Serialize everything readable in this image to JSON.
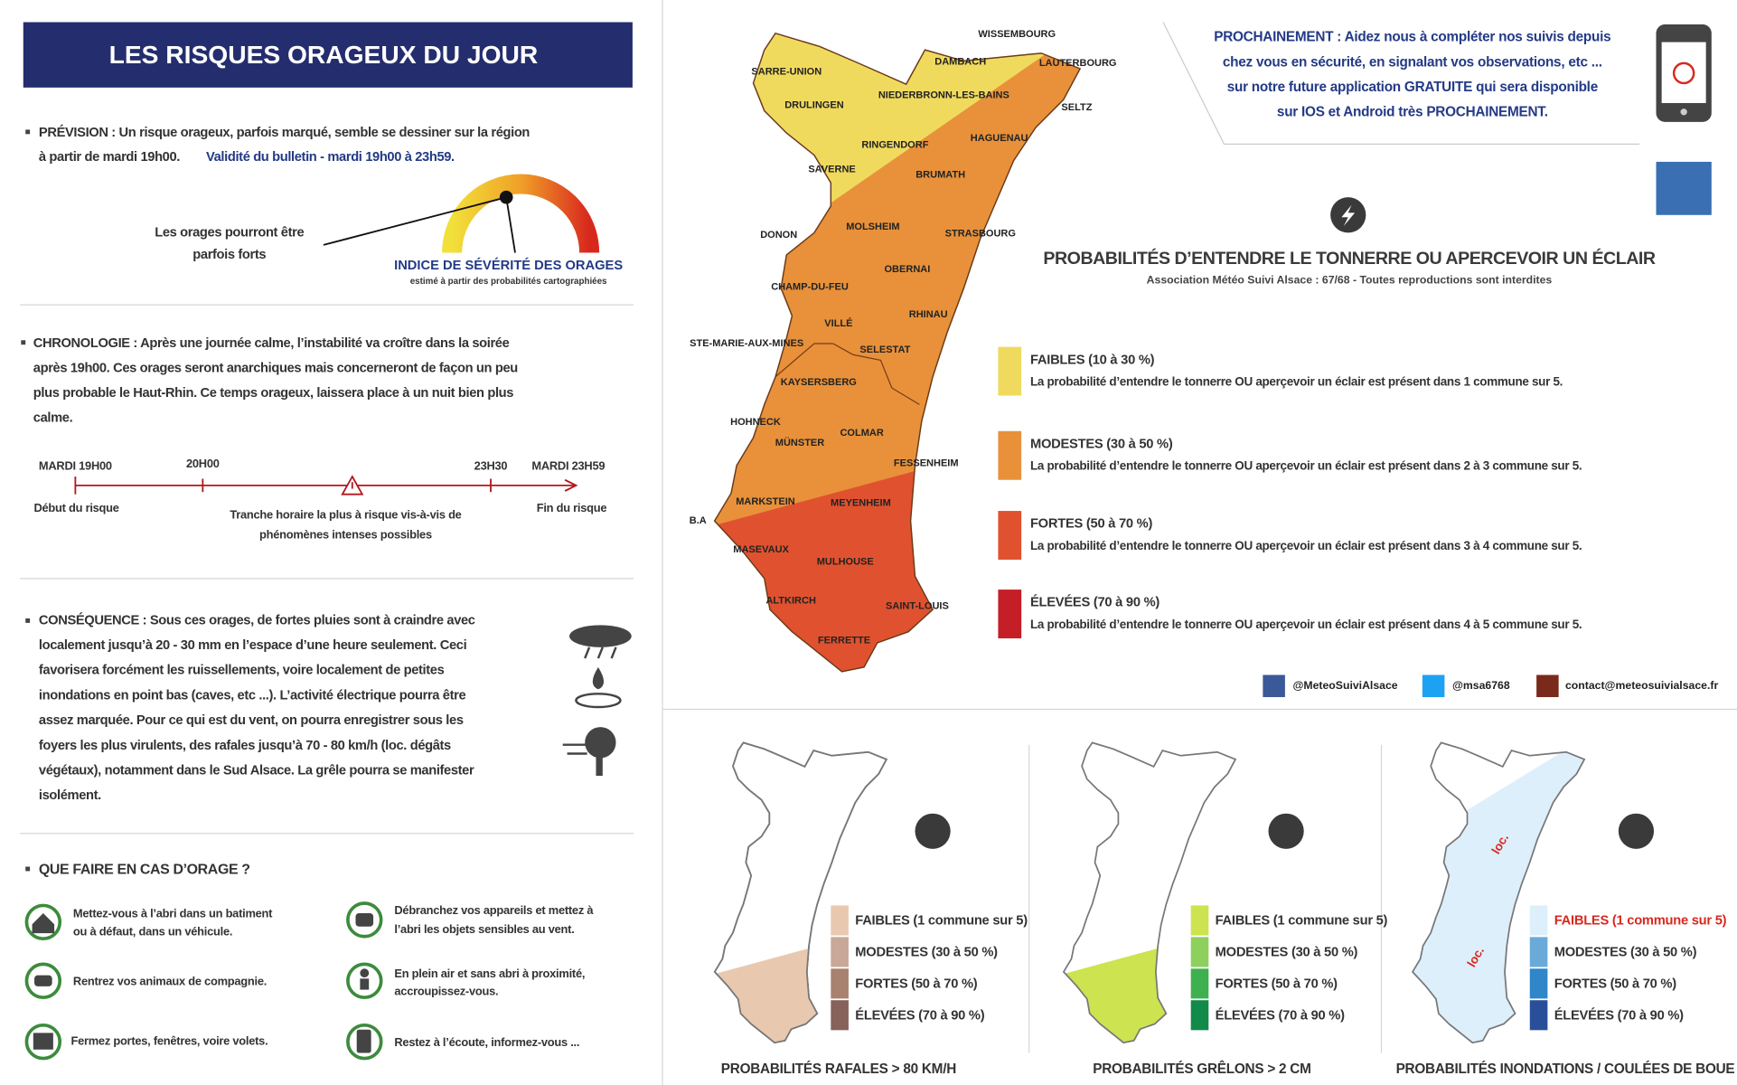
{
  "left_panel": {
    "title": "LES RISQUES ORAGEUX DU JOUR",
    "prevision": {
      "lines": [
        "PRÉVISION : Un risque orageux, parfois marqué, semble se dessiner sur la région",
        "à partir de mardi 19h00."
      ],
      "validity": "Validité du bulletin - mardi 19h00 à 23h59."
    },
    "gauge": {
      "caption": [
        "Les orages pourront être",
        "parfois forts"
      ],
      "label": "INDICE DE SÉVÉRITÉ DES ORAGES",
      "sublabel": "estimé à partir des probabilités cartographiées"
    },
    "chronologie": {
      "lines": [
        "CHRONOLOGIE : Après une journée calme, l’instabilité va croître dans la soirée",
        "après 19h00. Ces orages seront anarchiques mais concerneront de façon un peu",
        "plus probable le Haut-Rhin. Ce temps orageux, laissera place à un nuit bien plus",
        "calme."
      ]
    },
    "timeline": {
      "start": "MARDI 19H00",
      "first": "20H00",
      "last": "23H30",
      "end": "MARDI 23H59",
      "start_note": "Début du risque",
      "peak_note": [
        "Tranche horaire la plus à risque vis-à-vis de",
        "phénomènes intenses possibles"
      ],
      "end_note": "Fin du risque"
    },
    "consequence": {
      "lines": [
        "CONSÉQUENCE : Sous ces orages, de fortes pluies sont à craindre avec",
        "localement jusqu’à 20 - 30 mm en l’espace d’une heure seulement. Ceci",
        "favorisera forcément les ruissellements, voire localement de petites",
        "inondations en point bas (caves, etc ...). L’activité électrique pourra être",
        "assez marquée. Pour ce qui est du vent, on pourra enregistrer sous les",
        "foyers les plus virulents, des rafales jusqu’à 70 - 80 km/h (loc. dégâts",
        "végétaux), notamment dans le Sud Alsace. La grêle pourra se manifester",
        "isolément."
      ]
    },
    "what_to_do": {
      "title": "QUE FAIRE EN CAS D’ORAGE ?",
      "items": [
        [
          "Mettez-vous à l’abri dans un batiment",
          "ou à défaut, dans un véhicule."
        ],
        [
          "Débranchez vos appareils et mettez à",
          "l’abri les objets sensibles au vent."
        ],
        [
          "Rentrez vos animaux de compagnie."
        ],
        [
          "En plein air et sans abri à proximité,",
          "accroupissez-vous."
        ],
        [
          "Fermez portes, fenêtres, voire volets."
        ],
        [
          "Restez à l’écoute, informez-vous ..."
        ]
      ]
    }
  },
  "announcement": [
    "PROCHAINEMENT : Aidez nous à compléter nos suivis depuis",
    "chez vous en sécurité, en signalant vos observations, etc ...",
    "sur notre future application GRATUITE qui sera disponible",
    "sur IOS et Android très PROCHAINEMENT."
  ],
  "main_map": {
    "title": "PROBABILITÉS D’ENTENDRE LE TONNERRE OU APERCEVOIR UN ÉCLAIR",
    "subtitle": "Association Météo Suivi Alsace : 67/68 - Toutes reproductions sont interdites",
    "cities": [
      "WISSEMBOURG",
      "DAMBACH",
      "LAUTERBOURG",
      "SARRE-UNION",
      "NIEDERBRONN-LES-BAINS",
      "SELTZ",
      "DRULINGEN",
      "HAGUENAU",
      "RINGENDORF",
      "SAVERNE",
      "BRUMATH",
      "DONON",
      "MOLSHEIM",
      "STRASBOURG",
      "OBERNAI",
      "CHAMP-DU-FEU",
      "RHINAU",
      "VILLÉ",
      "STE-MARIE-AUX-MINES",
      "SELESTAT",
      "KAYSERSBERG",
      "HOHNECK",
      "COLMAR",
      "MÜNSTER",
      "FESSENHEIM",
      "MARKSTEIN",
      "MEYENHEIM",
      "B.A",
      "MASEVAUX",
      "MULHOUSE",
      "ALTKIRCH",
      "SAINT-LOUIS",
      "FERRETTE"
    ],
    "legend": [
      {
        "label": "FAIBLES (10 à 30 %)",
        "description": "La probabilité d’entendre le tonnerre OU aperçevoir un éclair est présent dans 1 commune sur 5.",
        "color": "#f0da5e"
      },
      {
        "label": "MODESTES (30 à 50 %)",
        "description": "La probabilité d’entendre le tonnerre OU aperçevoir un éclair est présent dans 2 à 3 commune sur 5.",
        "color": "#e8913a"
      },
      {
        "label": "FORTES (50 à 70 %)",
        "description": "La probabilité d’entendre le tonnerre OU aperçevoir un éclair est présent dans 3 à 4 commune sur 5.",
        "color": "#e0522f"
      },
      {
        "label": "ÉLEVÉES (70 à 90 %)",
        "description": "La probabilité d’entendre le tonnerre OU aperçevoir un éclair est présent dans 4 à 5 commune sur 5.",
        "color": "#c41e26"
      }
    ]
  },
  "social": [
    "@MeteoSuiviAlsace",
    "@msa6768",
    "contact@meteosuivialsace.fr"
  ],
  "small_maps": [
    {
      "title": "PROBABILITÉS RAFALES > 80 KM/H",
      "legend": [
        {
          "label": "FAIBLES (1 commune sur 5)",
          "color": "#e8c9b0"
        },
        {
          "label": "MODESTES (30 à 50 %)",
          "color": "#c8a898"
        },
        {
          "label": "FORTES (50 à 70 %)",
          "color": "#a8826f"
        },
        {
          "label": "ÉLEVÉES (70 à 90 %)",
          "color": "#86625a"
        }
      ]
    },
    {
      "title": "PROBABILITÉS GRÊLONS > 2 CM",
      "legend": [
        {
          "label": "FAIBLES (1 commune sur 5)",
          "color": "#cde34f"
        },
        {
          "label": "MODESTES (30 à 50 %)",
          "color": "#8dd05e"
        },
        {
          "label": "FORTES (50 à 70 %)",
          "color": "#3fb04e"
        },
        {
          "label": "ÉLEVÉES (70 à 90 %)",
          "color": "#128a4a"
        }
      ]
    },
    {
      "title": "PROBABILITÉS INONDATIONS / COULÉES DE BOUE",
      "annotations": [
        "loc.",
        "loc."
      ],
      "legend": [
        {
          "label": "FAIBLES (1 commune sur 5)",
          "color": "#ddeffb"
        },
        {
          "label": "MODESTES (30 à 50 %)",
          "color": "#6aaad8"
        },
        {
          "label": "FORTES (50 à 70 %)",
          "color": "#2f86c8"
        },
        {
          "label": "ÉLEVÉES (70 à 90 %)",
          "color": "#2a4f9a"
        }
      ]
    }
  ]
}
